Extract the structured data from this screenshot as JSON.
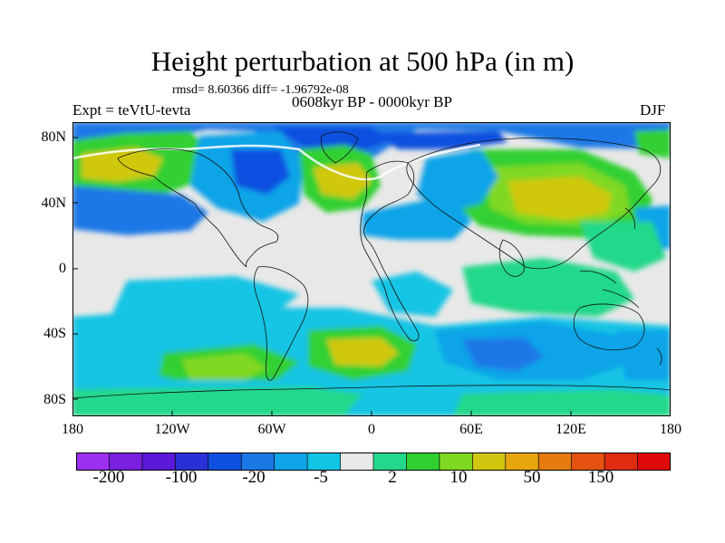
{
  "title": "Height perturbation at 500 hPa (in m)",
  "stats_text": "rmsd= 8.60366 diff= -1.96792e-08",
  "expt_label": "Expt = teVtU-tevta",
  "period_label": "0608kyr BP - 0000kyr BP",
  "season_label": "DJF",
  "map": {
    "lon_range": [
      -180,
      180
    ],
    "lat_range": [
      -90,
      90
    ],
    "y_ticks": [
      "80N",
      "40N",
      "0",
      "40S",
      "80S"
    ],
    "x_ticks": [
      "180",
      "120W",
      "60W",
      "0",
      "60E",
      "120E",
      "180"
    ]
  },
  "colorbar": {
    "colors": [
      "#9b30f0",
      "#7a20e0",
      "#5a18d8",
      "#2a30d8",
      "#1050e0",
      "#1a78e6",
      "#10a4e8",
      "#12c4e4",
      "#e8e8e8",
      "#22d88a",
      "#30d030",
      "#80d820",
      "#d0c810",
      "#e6a60e",
      "#e67c10",
      "#e65210",
      "#e02c10",
      "#e00a0a"
    ],
    "labels": [
      "-200",
      "-100",
      "-20",
      "-5",
      "2",
      "10",
      "50",
      "150"
    ]
  },
  "field_colors": {
    "neutral": "#e8e8e8",
    "weak_pos": "#22d88a",
    "pos": "#30d030",
    "mid_pos": "#80d820",
    "strong_pos": "#d0c810",
    "max_pos": "#e6a60e",
    "weak_neg": "#12c4e4",
    "neg": "#10a4e8",
    "mid_neg": "#1a78e6",
    "strong_neg": "#1050e0"
  }
}
